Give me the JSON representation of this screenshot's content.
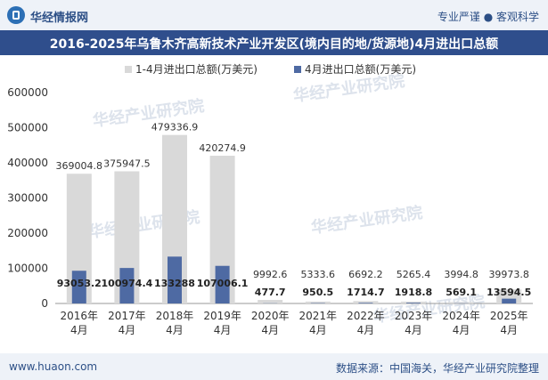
{
  "header": {
    "brand": "华经情报网",
    "tagline": "专业严谨 ● 客观科学"
  },
  "footer": {
    "site": "www.huaon.com",
    "source": "数据来源：中国海关，华经产业研究院整理"
  },
  "colors": {
    "series1": "#d9d9d9",
    "series2": "#4e6aa3",
    "title_bg": "#2f4e8c"
  },
  "watermark": "华经产业研究院",
  "chart_data": {
    "type": "bar",
    "title": "2016-2025年乌鲁木齐高新技术产业开发区(境内目的地/货源地)4月进出口总额",
    "categories": [
      [
        "2016年",
        "4月"
      ],
      [
        "2017年",
        "4月"
      ],
      [
        "2018年",
        "4月"
      ],
      [
        "2019年",
        "4月"
      ],
      [
        "2020年",
        "4月"
      ],
      [
        "2021年",
        "4月"
      ],
      [
        "2022年",
        "4月"
      ],
      [
        "2023年",
        "4月"
      ],
      [
        "2024年",
        "4月"
      ],
      [
        "2025年",
        "4月"
      ]
    ],
    "series": [
      {
        "name": "1-4月进出口总额(万美元)",
        "values": [
          369004.8,
          375947.5,
          479336.9,
          420274.9,
          9992.6,
          5333.6,
          6692.2,
          5265.4,
          3994.8,
          39973.8
        ],
        "labels": [
          "369004.8",
          "375947.5",
          "479336.9",
          "420274.9",
          "9992.6",
          "5333.6",
          "6692.2",
          "5265.4",
          "3994.8",
          "39973.8"
        ]
      },
      {
        "name": "4月进出口总额(万美元)",
        "values": [
          93053.2,
          100974.4,
          133288,
          107006.1,
          477.7,
          950.5,
          1714.7,
          1918.8,
          569.1,
          13594.5
        ],
        "labels": [
          "93053.2",
          "100974.4",
          "133288",
          "107006.1",
          "477.7",
          "950.5",
          "1714.7",
          "1918.8",
          "569.1",
          "13594.5"
        ]
      }
    ],
    "ylim": [
      0,
      600000
    ],
    "yticks": [
      "0",
      "100000",
      "200000",
      "300000",
      "400000",
      "500000",
      "600000"
    ],
    "legend": "top-center"
  }
}
